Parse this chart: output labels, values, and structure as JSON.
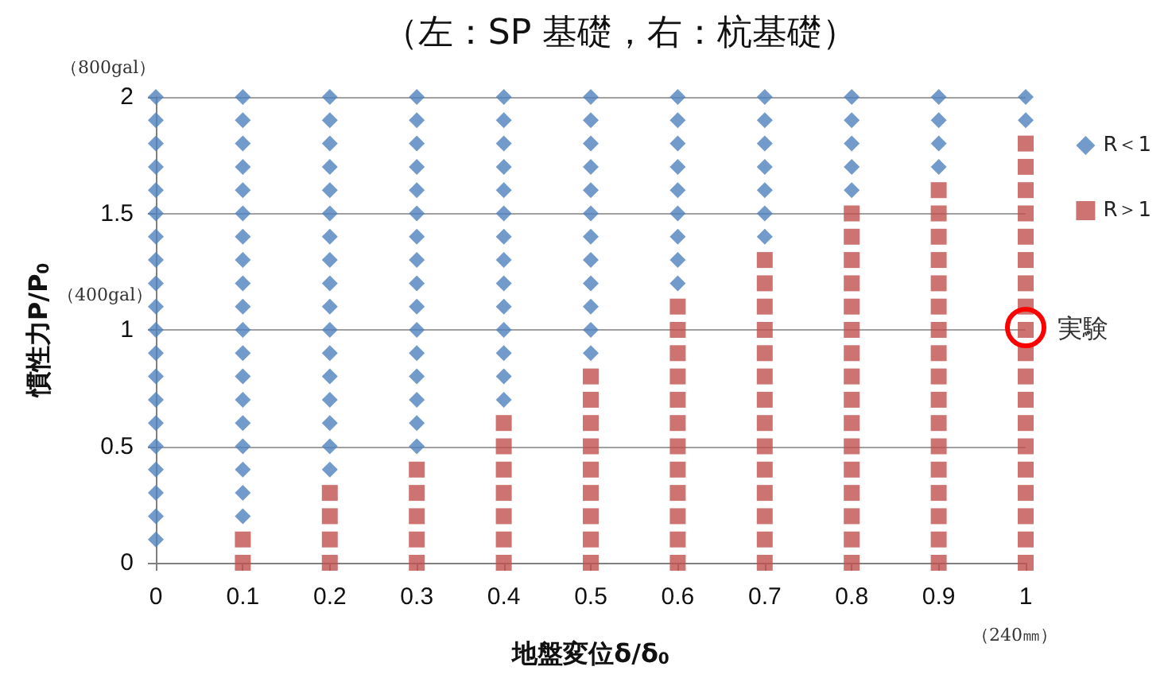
{
  "chart_data": {
    "type": "scatter",
    "title": "（左：SP 基礎，右：杭基礎）",
    "xlabel": "地盤変位δ/δ$_{0}$",
    "ylabel": "慣性力P/P$_{0}$",
    "xlim": [
      0,
      1
    ],
    "xticks": [
      0,
      0.1,
      0.2,
      0.3,
      0.4,
      0.5,
      0.6,
      0.7,
      0.8,
      0.9,
      1
    ],
    "ylim": [
      0,
      2
    ],
    "yticks": [
      0,
      0.5,
      1,
      1.5,
      2
    ],
    "grid": "y",
    "legend": "right",
    "series": [
      {
        "name": "R＜1",
        "color": "#4f81bd",
        "marker": "diamond",
        "x": [
          0,
          0,
          0,
          0,
          0,
          0,
          0,
          0,
          0,
          0,
          0,
          0,
          0,
          0,
          0,
          0,
          0,
          0,
          0,
          0,
          0.1,
          0.1,
          0.1,
          0.1,
          0.1,
          0.1,
          0.1,
          0.1,
          0.1,
          0.1,
          0.1,
          0.1,
          0.1,
          0.1,
          0.1,
          0.1,
          0.1,
          0.1,
          0.1,
          0.2,
          0.2,
          0.2,
          0.2,
          0.2,
          0.2,
          0.2,
          0.2,
          0.2,
          0.2,
          0.2,
          0.2,
          0.2,
          0.2,
          0.2,
          0.2,
          0.2,
          0.3,
          0.3,
          0.3,
          0.3,
          0.3,
          0.3,
          0.3,
          0.3,
          0.3,
          0.3,
          0.3,
          0.3,
          0.3,
          0.3,
          0.3,
          0.3,
          0.4,
          0.4,
          0.4,
          0.4,
          0.4,
          0.4,
          0.4,
          0.4,
          0.4,
          0.4,
          0.4,
          0.4,
          0.4,
          0.4,
          0.5,
          0.5,
          0.5,
          0.5,
          0.5,
          0.5,
          0.5,
          0.5,
          0.5,
          0.5,
          0.5,
          0.5,
          0.6,
          0.6,
          0.6,
          0.6,
          0.6,
          0.6,
          0.6,
          0.6,
          0.6,
          0.7,
          0.7,
          0.7,
          0.7,
          0.7,
          0.7,
          0.7,
          0.8,
          0.8,
          0.8,
          0.8,
          0.8,
          0.9,
          0.9,
          0.9,
          0.9,
          1,
          1
        ],
        "values": [
          0.1,
          0.2,
          0.3,
          0.4,
          0.5,
          0.6,
          0.7,
          0.8,
          0.9,
          1,
          1.1,
          1.2,
          1.3,
          1.4,
          1.5,
          1.6,
          1.7,
          1.8,
          1.9,
          2,
          0.2,
          0.3,
          0.4,
          0.5,
          0.6,
          0.7,
          0.8,
          0.9,
          1,
          1.1,
          1.2,
          1.3,
          1.4,
          1.5,
          1.6,
          1.7,
          1.8,
          1.9,
          2,
          0.4,
          0.5,
          0.6,
          0.7,
          0.8,
          0.9,
          1,
          1.1,
          1.2,
          1.3,
          1.4,
          1.5,
          1.6,
          1.7,
          1.8,
          1.9,
          2,
          0.5,
          0.6,
          0.7,
          0.8,
          0.9,
          1,
          1.1,
          1.2,
          1.3,
          1.4,
          1.5,
          1.6,
          1.7,
          1.8,
          1.9,
          2,
          0.7,
          0.8,
          0.9,
          1,
          1.1,
          1.2,
          1.3,
          1.4,
          1.5,
          1.6,
          1.7,
          1.8,
          1.9,
          2,
          0.9,
          1,
          1.1,
          1.2,
          1.3,
          1.4,
          1.5,
          1.6,
          1.7,
          1.8,
          1.9,
          2,
          1.2,
          1.3,
          1.4,
          1.5,
          1.6,
          1.7,
          1.8,
          1.9,
          2,
          1.4,
          1.5,
          1.6,
          1.7,
          1.8,
          1.9,
          2,
          1.6,
          1.7,
          1.8,
          1.9,
          2,
          1.7,
          1.8,
          1.9,
          2,
          1.9,
          2
        ]
      },
      {
        "name": "R＞1",
        "color": "#c0504d",
        "marker": "square",
        "x": [
          0.1,
          0.1,
          0.2,
          0.2,
          0.2,
          0.2,
          0.3,
          0.3,
          0.3,
          0.3,
          0.3,
          0.4,
          0.4,
          0.4,
          0.4,
          0.4,
          0.4,
          0.4,
          0.5,
          0.5,
          0.5,
          0.5,
          0.5,
          0.5,
          0.5,
          0.5,
          0.5,
          0.6,
          0.6,
          0.6,
          0.6,
          0.6,
          0.6,
          0.6,
          0.6,
          0.6,
          0.6,
          0.6,
          0.6,
          0.7,
          0.7,
          0.7,
          0.7,
          0.7,
          0.7,
          0.7,
          0.7,
          0.7,
          0.7,
          0.7,
          0.7,
          0.7,
          0.7,
          0.8,
          0.8,
          0.8,
          0.8,
          0.8,
          0.8,
          0.8,
          0.8,
          0.8,
          0.8,
          0.8,
          0.8,
          0.8,
          0.8,
          0.8,
          0.8,
          0.9,
          0.9,
          0.9,
          0.9,
          0.9,
          0.9,
          0.9,
          0.9,
          0.9,
          0.9,
          0.9,
          0.9,
          0.9,
          0.9,
          0.9,
          0.9,
          0.9,
          1,
          1,
          1,
          1,
          1,
          1,
          1,
          1,
          1,
          1,
          1,
          1,
          1,
          1,
          1,
          1,
          1,
          1,
          1
        ],
        "values": [
          0,
          0.1,
          0,
          0.1,
          0.2,
          0.3,
          0,
          0.1,
          0.2,
          0.3,
          0.4,
          0,
          0.1,
          0.2,
          0.3,
          0.4,
          0.5,
          0.6,
          0,
          0.1,
          0.2,
          0.3,
          0.4,
          0.5,
          0.6,
          0.7,
          0.8,
          0,
          0.1,
          0.2,
          0.3,
          0.4,
          0.5,
          0.6,
          0.7,
          0.8,
          0.9,
          1,
          1.1,
          0,
          0.1,
          0.2,
          0.3,
          0.4,
          0.5,
          0.6,
          0.7,
          0.8,
          0.9,
          1,
          1.1,
          1.2,
          1.3,
          0,
          0.1,
          0.2,
          0.3,
          0.4,
          0.5,
          0.6,
          0.7,
          0.8,
          0.9,
          1,
          1.1,
          1.2,
          1.3,
          1.4,
          1.5,
          0,
          0.1,
          0.2,
          0.3,
          0.4,
          0.5,
          0.6,
          0.7,
          0.8,
          0.9,
          1,
          1.1,
          1.2,
          1.3,
          1.4,
          1.5,
          1.6,
          0,
          0.1,
          0.2,
          0.3,
          0.4,
          0.5,
          0.6,
          0.7,
          0.8,
          0.9,
          1,
          1.1,
          1.2,
          1.3,
          1.4,
          1.5,
          1.6,
          1.7,
          1.8
        ]
      }
    ],
    "annotations": [
      "（800gal）",
      "（400gal）",
      "（240㎜）",
      {
        "text": "実験",
        "x": 1,
        "y": 1
      }
    ]
  }
}
